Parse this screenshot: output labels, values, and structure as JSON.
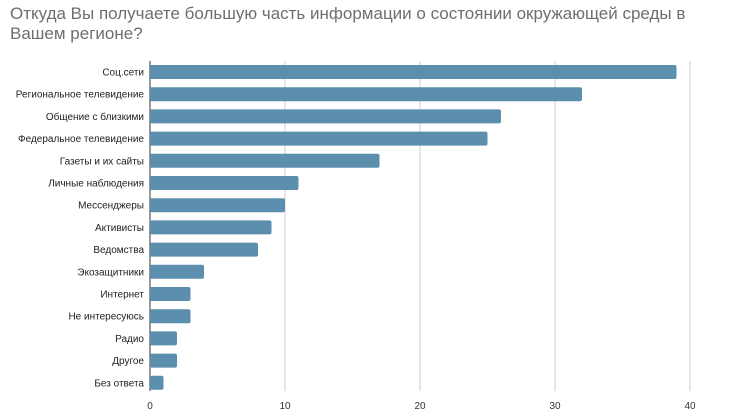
{
  "chart_data": {
    "type": "bar",
    "orientation": "horizontal",
    "title": "Откуда Вы получаете большую часть информации о состоянии окружающей среды в Вашем регионе?",
    "categories": [
      "Соц.сети",
      "Региональное телевидение",
      "Общение с близкими",
      "Федеральное телевидение",
      "Газеты и их сайты",
      "Личные наблюдения",
      "Мессенджеры",
      "Активисты",
      "Ведомства",
      "Экозащитники",
      "Интернет",
      "Не интересуюсь",
      "Радио",
      "Другое",
      "Без ответа"
    ],
    "values": [
      39,
      32,
      26,
      25,
      17,
      11,
      10,
      9,
      8,
      4,
      3,
      3,
      2,
      2,
      1
    ],
    "xlim": [
      0,
      40
    ],
    "xticks": [
      0,
      10,
      20,
      30,
      40
    ],
    "grid": true,
    "bar_color": "#5b8fad",
    "grid_color": "#cccccc"
  }
}
